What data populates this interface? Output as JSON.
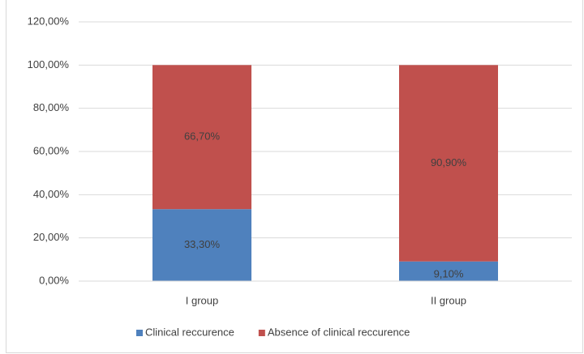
{
  "chart_data": {
    "type": "stacked_bar",
    "categories": [
      "I group",
      "II group"
    ],
    "series": [
      {
        "name": "Clinical reccurence",
        "color": "#4f81bd",
        "values": [
          33.3,
          9.1
        ],
        "value_labels": [
          "33,30%",
          "9,10%"
        ]
      },
      {
        "name": "Absence of clinical reccurence",
        "color": "#c0504d",
        "values": [
          66.7,
          90.9
        ],
        "value_labels": [
          "66,70%",
          "90,90%"
        ]
      }
    ],
    "ylim": [
      0,
      120
    ],
    "yticks": [
      {
        "value": 0,
        "label": "0,00%"
      },
      {
        "value": 20,
        "label": "20,00%"
      },
      {
        "value": 40,
        "label": "40,00%"
      },
      {
        "value": 60,
        "label": "60,00%"
      },
      {
        "value": 80,
        "label": "80,00%"
      },
      {
        "value": 100,
        "label": "100,00%"
      },
      {
        "value": 120,
        "label": "120,00%"
      }
    ],
    "grid": true,
    "legend": "bottom"
  }
}
